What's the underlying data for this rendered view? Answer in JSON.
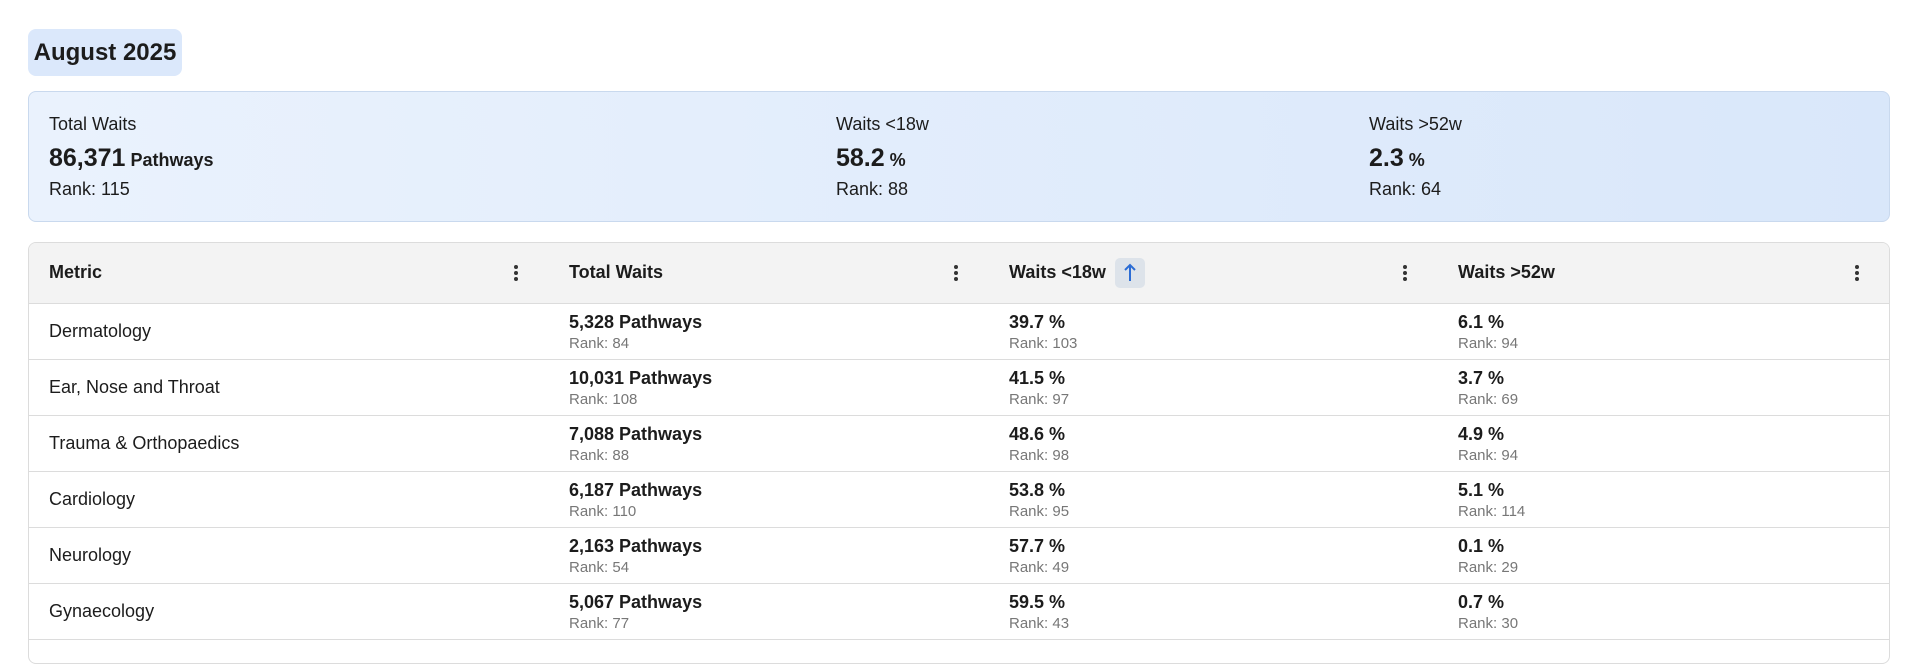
{
  "header": {
    "title": "August 2025"
  },
  "summary": {
    "items": [
      {
        "label": "Total Waits",
        "value": "86,371",
        "unit": "Pathways",
        "rank": "Rank: 115"
      },
      {
        "label": "Waits <18w",
        "value": "58.2",
        "unit": "%",
        "rank": "Rank: 88"
      },
      {
        "label": "Waits >52w",
        "value": "2.3",
        "unit": "%",
        "rank": "Rank: 64"
      }
    ]
  },
  "table": {
    "columns": [
      "Metric",
      "Total Waits",
      "Waits <18w",
      "Waits >52w"
    ],
    "rows": [
      {
        "metric": "Dermatology",
        "cells": [
          {
            "value": "5,328 Pathways",
            "rank": "Rank: 84"
          },
          {
            "value": "39.7 %",
            "rank": "Rank: 103"
          },
          {
            "value": "6.1 %",
            "rank": "Rank: 94"
          }
        ]
      },
      {
        "metric": "Ear, Nose and Throat",
        "cells": [
          {
            "value": "10,031 Pathways",
            "rank": "Rank: 108"
          },
          {
            "value": "41.5 %",
            "rank": "Rank: 97"
          },
          {
            "value": "3.7 %",
            "rank": "Rank: 69"
          }
        ]
      },
      {
        "metric": "Trauma & Orthopaedics",
        "cells": [
          {
            "value": "7,088 Pathways",
            "rank": "Rank: 88"
          },
          {
            "value": "48.6 %",
            "rank": "Rank: 98"
          },
          {
            "value": "4.9 %",
            "rank": "Rank: 94"
          }
        ]
      },
      {
        "metric": "Cardiology",
        "cells": [
          {
            "value": "6,187 Pathways",
            "rank": "Rank: 110"
          },
          {
            "value": "53.8 %",
            "rank": "Rank: 95"
          },
          {
            "value": "5.1 %",
            "rank": "Rank: 114"
          }
        ]
      },
      {
        "metric": "Neurology",
        "cells": [
          {
            "value": "2,163 Pathways",
            "rank": "Rank: 54"
          },
          {
            "value": "57.7 %",
            "rank": "Rank: 49"
          },
          {
            "value": "0.1 %",
            "rank": "Rank: 29"
          }
        ]
      },
      {
        "metric": "Gynaecology",
        "cells": [
          {
            "value": "5,067 Pathways",
            "rank": "Rank: 77"
          },
          {
            "value": "59.5 %",
            "rank": "Rank: 43"
          },
          {
            "value": "0.7 %",
            "rank": "Rank: 30"
          }
        ]
      }
    ]
  }
}
